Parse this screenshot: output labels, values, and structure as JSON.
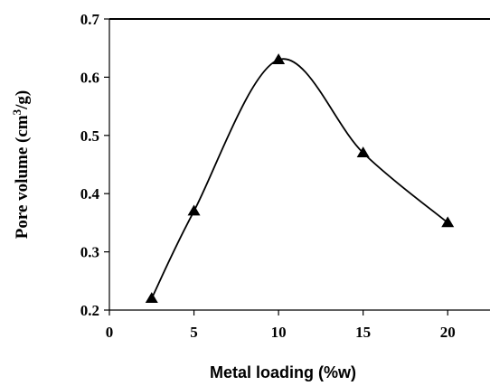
{
  "chart_data": {
    "type": "line",
    "title": "",
    "xlabel": "Metal loading (%w)",
    "ylabel_parts": [
      "Pore  volume  (cm",
      "3",
      "/g)"
    ],
    "xlim": [
      0,
      22.5
    ],
    "ylim": [
      0.2,
      0.7
    ],
    "x_ticks": [
      "0",
      "5",
      "10",
      "15",
      "20"
    ],
    "y_ticks": [
      "0.2",
      "0.3",
      "0.4",
      "0.5",
      "0.6",
      "0.7"
    ],
    "series": [
      {
        "marker": "triangle",
        "smooth": true,
        "color": "#000000",
        "x": [
          2.5,
          5,
          10,
          15,
          20
        ],
        "y": [
          0.22,
          0.37,
          0.63,
          0.47,
          0.35
        ]
      }
    ],
    "grid": false,
    "legend": "none"
  }
}
